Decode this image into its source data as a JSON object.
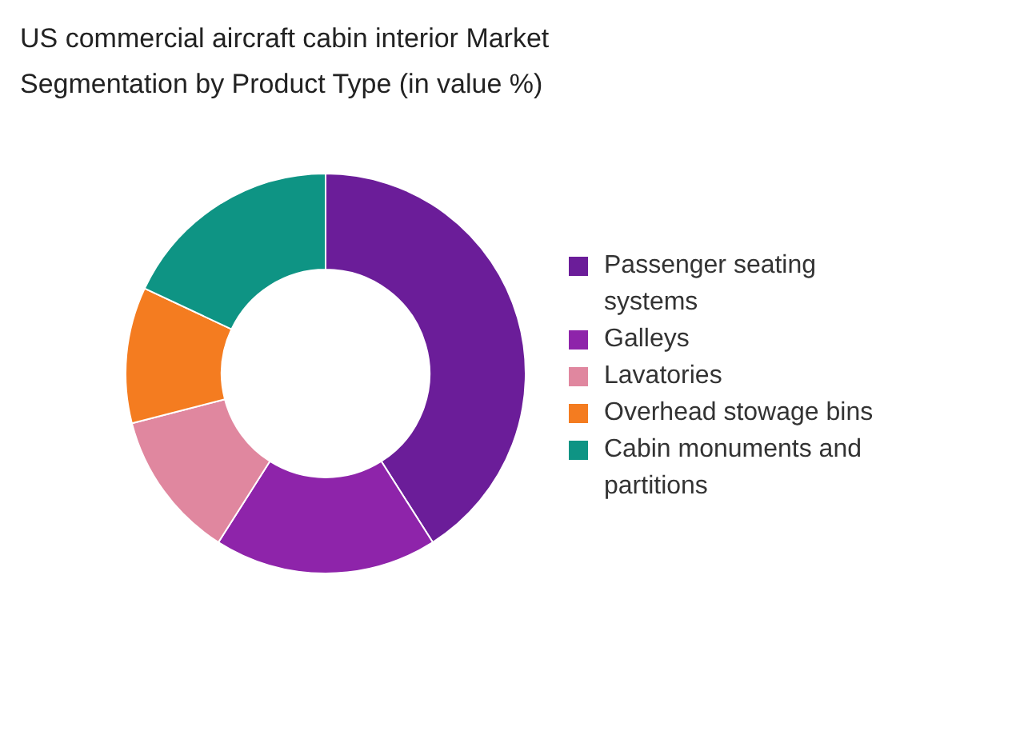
{
  "chart_data": {
    "type": "donut",
    "title": "US commercial aircraft cabin interior Market Segmentation by Product Type (in value %)",
    "categories": [
      "Passenger seating systems",
      "Galleys",
      "Lavatories",
      "Overhead stowage bins",
      "Cabin monuments and partitions"
    ],
    "values": [
      41,
      18,
      12,
      11,
      18
    ],
    "colors": [
      "#6b1d99",
      "#8e24aa",
      "#e0879f",
      "#f47c20",
      "#0e9484"
    ],
    "legend": "right"
  }
}
